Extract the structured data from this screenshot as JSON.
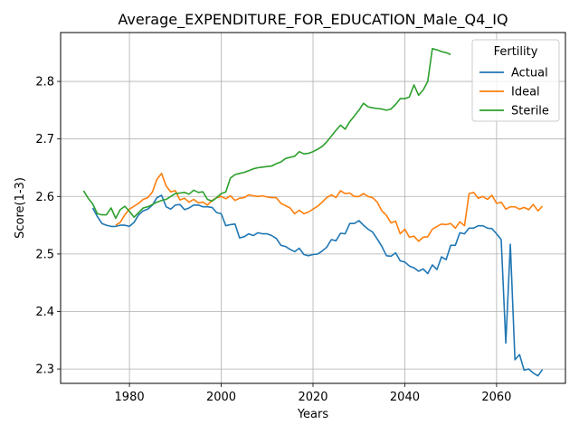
{
  "chart_data": {
    "type": "line",
    "title": "Average_EXPENDITURE_FOR_EDUCATION_Male_Q4_IQ",
    "xlabel": "Years",
    "ylabel": "Score(1-3)",
    "xlim": [
      1965,
      2075
    ],
    "ylim": [
      2.275,
      2.885
    ],
    "xticks": [
      1980,
      2000,
      2020,
      2040,
      2060
    ],
    "yticks": [
      2.3,
      2.4,
      2.5,
      2.6,
      2.7,
      2.8
    ],
    "grid": true,
    "legend": {
      "title": "Fertility",
      "placement": "upper right"
    },
    "series": [
      {
        "name": "Actual",
        "color": "#1f77b4",
        "x": [
          1972,
          1973,
          1974,
          1975,
          1976,
          1977,
          1978,
          1979,
          1980,
          1981,
          1982,
          1983,
          1984,
          1985,
          1986,
          1987,
          1988,
          1989,
          1990,
          1991,
          1992,
          1993,
          1994,
          1995,
          1996,
          1997,
          1998,
          1999,
          2000,
          2001,
          2002,
          2003,
          2004,
          2005,
          2006,
          2007,
          2008,
          2009,
          2010,
          2011,
          2012,
          2013,
          2014,
          2015,
          2016,
          2017,
          2018,
          2019,
          2020,
          2021,
          2022,
          2023,
          2024,
          2025,
          2026,
          2027,
          2028,
          2029,
          2030,
          2031,
          2032,
          2033,
          2034,
          2035,
          2036,
          2037,
          2038,
          2039,
          2040,
          2041,
          2042,
          2043,
          2044,
          2045,
          2046,
          2047,
          2048,
          2049,
          2050,
          2051,
          2052,
          2053,
          2054,
          2055,
          2056,
          2057,
          2058,
          2059,
          2060,
          2061,
          2062,
          2063,
          2064,
          2065,
          2066,
          2067,
          2068,
          2069,
          2070
        ],
        "y": [
          2.58,
          2.565,
          2.553,
          2.55,
          2.548,
          2.548,
          2.55,
          2.55,
          2.548,
          2.555,
          2.568,
          2.575,
          2.578,
          2.585,
          2.598,
          2.602,
          2.582,
          2.578,
          2.585,
          2.586,
          2.577,
          2.58,
          2.585,
          2.585,
          2.582,
          2.582,
          2.581,
          2.572,
          2.57,
          2.549,
          2.551,
          2.552,
          2.528,
          2.53,
          2.535,
          2.532,
          2.537,
          2.535,
          2.535,
          2.532,
          2.527,
          2.515,
          2.513,
          2.508,
          2.504,
          2.51,
          2.499,
          2.497,
          2.499,
          2.5,
          2.505,
          2.512,
          2.525,
          2.523,
          2.536,
          2.535,
          2.553,
          2.553,
          2.558,
          2.55,
          2.543,
          2.538,
          2.526,
          2.513,
          2.497,
          2.496,
          2.502,
          2.488,
          2.486,
          2.479,
          2.476,
          2.47,
          2.474,
          2.466,
          2.481,
          2.473,
          2.495,
          2.49,
          2.515,
          2.515,
          2.537,
          2.535,
          2.545,
          2.545,
          2.549,
          2.549,
          2.545,
          2.544,
          2.535,
          2.525,
          2.345,
          2.517,
          2.316,
          2.325,
          2.298,
          2.3,
          2.293,
          2.288,
          2.299
        ]
      },
      {
        "name": "Ideal",
        "color": "#ff7f0e",
        "x": [
          1977,
          1978,
          1979,
          1980,
          1981,
          1982,
          1983,
          1984,
          1985,
          1986,
          1987,
          1988,
          1989,
          1990,
          1991,
          1992,
          1993,
          1994,
          1995,
          1996,
          1997,
          1998,
          1999,
          2000,
          2001,
          2002,
          2003,
          2004,
          2005,
          2006,
          2007,
          2008,
          2009,
          2010,
          2011,
          2012,
          2013,
          2014,
          2015,
          2016,
          2017,
          2018,
          2019,
          2020,
          2021,
          2022,
          2023,
          2024,
          2025,
          2026,
          2027,
          2028,
          2029,
          2030,
          2031,
          2032,
          2033,
          2034,
          2035,
          2036,
          2037,
          2038,
          2039,
          2040,
          2041,
          2042,
          2043,
          2044,
          2045,
          2046,
          2047,
          2048,
          2049,
          2050,
          2051,
          2052,
          2053,
          2054,
          2055,
          2056,
          2057,
          2058,
          2059,
          2060,
          2061,
          2062,
          2063,
          2064,
          2065,
          2066,
          2067,
          2068,
          2069,
          2070
        ],
        "y": [
          2.55,
          2.555,
          2.568,
          2.578,
          2.583,
          2.588,
          2.595,
          2.598,
          2.608,
          2.63,
          2.64,
          2.618,
          2.608,
          2.61,
          2.594,
          2.597,
          2.59,
          2.595,
          2.589,
          2.59,
          2.585,
          2.593,
          2.598,
          2.6,
          2.596,
          2.601,
          2.593,
          2.597,
          2.598,
          2.603,
          2.601,
          2.6,
          2.601,
          2.599,
          2.598,
          2.598,
          2.588,
          2.584,
          2.58,
          2.57,
          2.576,
          2.57,
          2.573,
          2.578,
          2.583,
          2.59,
          2.598,
          2.603,
          2.598,
          2.61,
          2.605,
          2.606,
          2.6,
          2.6,
          2.605,
          2.6,
          2.598,
          2.59,
          2.575,
          2.567,
          2.554,
          2.557,
          2.535,
          2.543,
          2.529,
          2.531,
          2.522,
          2.529,
          2.53,
          2.543,
          2.548,
          2.552,
          2.551,
          2.553,
          2.545,
          2.556,
          2.549,
          2.605,
          2.607,
          2.597,
          2.6,
          2.595,
          2.602,
          2.588,
          2.59,
          2.578,
          2.582,
          2.582,
          2.578,
          2.581,
          2.577,
          2.586,
          2.575,
          2.583
        ]
      },
      {
        "name": "Sterile",
        "color": "#2ca02c",
        "x": [
          1970,
          1971,
          1972,
          1973,
          1974,
          1975,
          1976,
          1977,
          1978,
          1979,
          1980,
          1981,
          1982,
          1983,
          1984,
          1985,
          1986,
          1987,
          1988,
          1989,
          1990,
          1991,
          1992,
          1993,
          1994,
          1995,
          1996,
          1997,
          1998,
          1999,
          2000,
          2001,
          2002,
          2003,
          2004,
          2005,
          2006,
          2007,
          2008,
          2009,
          2010,
          2011,
          2012,
          2013,
          2014,
          2015,
          2016,
          2017,
          2018,
          2019,
          2020,
          2021,
          2022,
          2023,
          2024,
          2025,
          2026,
          2027,
          2028,
          2029,
          2030,
          2031,
          2032,
          2033,
          2034,
          2035,
          2036,
          2037,
          2038,
          2039,
          2040,
          2041,
          2042,
          2043,
          2044,
          2045,
          2046,
          2047,
          2048,
          2049,
          2050
        ],
        "y": [
          2.61,
          2.597,
          2.587,
          2.57,
          2.568,
          2.568,
          2.58,
          2.562,
          2.577,
          2.583,
          2.574,
          2.564,
          2.572,
          2.58,
          2.582,
          2.586,
          2.59,
          2.593,
          2.595,
          2.6,
          2.605,
          2.606,
          2.607,
          2.604,
          2.611,
          2.607,
          2.608,
          2.595,
          2.592,
          2.598,
          2.605,
          2.608,
          2.632,
          2.638,
          2.64,
          2.642,
          2.645,
          2.648,
          2.65,
          2.651,
          2.652,
          2.653,
          2.657,
          2.66,
          2.666,
          2.668,
          2.67,
          2.678,
          2.674,
          2.675,
          2.678,
          2.682,
          2.687,
          2.695,
          2.705,
          2.715,
          2.724,
          2.717,
          2.73,
          2.74,
          2.75,
          2.762,
          2.756,
          2.754,
          2.753,
          2.752,
          2.75,
          2.752,
          2.76,
          2.77,
          2.77,
          2.773,
          2.794,
          2.776,
          2.785,
          2.8,
          2.857,
          2.855,
          2.852,
          2.85,
          2.847
        ]
      }
    ]
  }
}
